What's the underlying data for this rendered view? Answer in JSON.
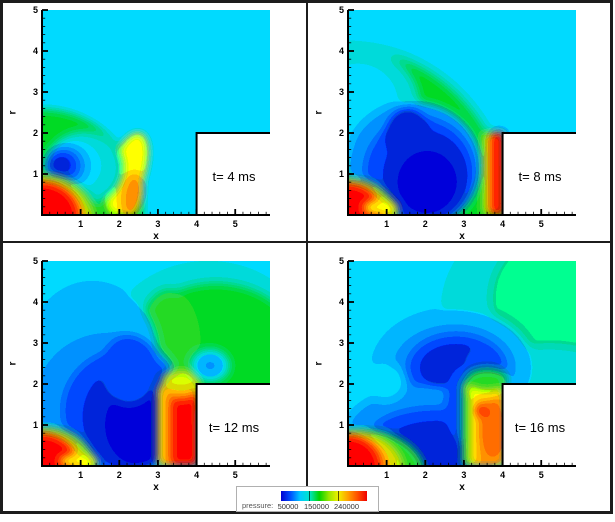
{
  "figure": {
    "background": "#ffffff",
    "frame_color": "#1c1c1c",
    "field_background": "#00c8f5"
  },
  "legend": {
    "label": "pressure:",
    "values": [
      "50000",
      "150000",
      "240000"
    ],
    "colorbar_colors": [
      "#0000d2",
      "#0050ff",
      "#00c8ff",
      "#00e6c8",
      "#00d200",
      "#96e600",
      "#f0f000",
      "#ffa000",
      "#ff5000",
      "#f00000"
    ]
  },
  "chart_data": {
    "type": "heatmap",
    "subtype": "filled-contour",
    "variable": "pressure",
    "xlabel": "x",
    "ylabel": "r",
    "x_range": [
      0,
      5.9
    ],
    "y_range": [
      0,
      5
    ],
    "x_ticks": [
      1,
      2,
      3,
      4,
      5
    ],
    "y_ticks": [
      1,
      2,
      3,
      4,
      5
    ],
    "minor_tick_step": 0.2,
    "colorbar_ticks": [
      50000,
      150000,
      240000
    ],
    "step_obstacle": {
      "x_from": 4,
      "r_upto": 2
    },
    "panels": [
      {
        "position": "top-left",
        "time_ms": 4,
        "time_label": "t= 4 ms",
        "features": [
          {
            "t": "r",
            "c": "#00c8f5",
            "x": -0.4,
            "y": -0.4,
            "w": 6.8,
            "h": 5.9
          },
          {
            "t": "e",
            "c": "#16d434",
            "x": 0,
            "y": 0,
            "rx": 2.62,
            "ry": 2.58
          },
          {
            "t": "e",
            "c": "#f4f000",
            "x": 2.2,
            "y": 1.0,
            "rx": 0.45,
            "ry": 1.05,
            "rot": -18
          },
          {
            "t": "e",
            "c": "#ff9600",
            "x": 2.32,
            "y": 0.5,
            "rx": 0.28,
            "ry": 0.55,
            "rot": -10
          },
          {
            "t": "e",
            "c": "#00dcc8",
            "x": 1.1,
            "y": 1.15,
            "rx": 1.0,
            "ry": 0.9
          },
          {
            "t": "e",
            "c": "#00c8f5",
            "x": 0.8,
            "y": 1.2,
            "rx": 0.75,
            "ry": 0.63
          },
          {
            "t": "e",
            "c": "#0096ff",
            "x": 0.62,
            "y": 1.2,
            "rx": 0.56,
            "ry": 0.5
          },
          {
            "t": "e",
            "c": "#0050f0",
            "x": 0.55,
            "y": 1.2,
            "rx": 0.42,
            "ry": 0.38
          },
          {
            "t": "e",
            "c": "#0a28d2",
            "x": 0.5,
            "y": 1.22,
            "rx": 0.26,
            "ry": 0.23
          },
          {
            "t": "e",
            "c": "#8ce41e",
            "x": 0.0,
            "y": -0.15,
            "rx": 1.42,
            "ry": 1.15
          },
          {
            "t": "e",
            "c": "#ffa000",
            "x": 0.0,
            "y": -0.1,
            "rx": 1.15,
            "ry": 0.95
          },
          {
            "t": "e",
            "c": "#f51400",
            "x": 0.0,
            "y": -0.05,
            "rx": 0.95,
            "ry": 0.85
          }
        ]
      },
      {
        "position": "top-right",
        "time_ms": 8,
        "time_label": "t= 8 ms",
        "features": [
          {
            "t": "r",
            "c": "#00c8f5",
            "x": -0.4,
            "y": -0.4,
            "w": 6.8,
            "h": 5.9
          },
          {
            "t": "e",
            "c": "#00dcc8",
            "x": 0,
            "y": 0,
            "rx": 4.3,
            "ry": 4.25
          },
          {
            "t": "e",
            "c": "#16d434",
            "x": 0,
            "y": 0,
            "rx": 4.08,
            "ry": 4.02
          },
          {
            "t": "e",
            "c": "#00dcc8",
            "x": 0.35,
            "y": 2.7,
            "rx": 1.5,
            "ry": 1.35
          },
          {
            "t": "e",
            "c": "#00c8f5",
            "x": 0.25,
            "y": 2.75,
            "rx": 1.05,
            "ry": 0.95
          },
          {
            "t": "e",
            "c": "#0096ff",
            "x": 1.7,
            "y": 1.2,
            "rx": 1.75,
            "ry": 1.55
          },
          {
            "t": "e",
            "c": "#0055ee",
            "x": 1.85,
            "y": 1.05,
            "rx": 1.45,
            "ry": 1.35
          },
          {
            "t": "e",
            "c": "#0a28d2",
            "x": 2.0,
            "y": 0.95,
            "rx": 1.1,
            "ry": 1.1
          },
          {
            "t": "e",
            "c": "#0a28d2",
            "x": 1.55,
            "y": 1.9,
            "rx": 0.6,
            "ry": 0.7
          },
          {
            "t": "e",
            "c": "#0a14c8",
            "x": 2.05,
            "y": 0.8,
            "rx": 0.75,
            "ry": 0.75
          },
          {
            "t": "r",
            "c": "#c8e414",
            "x": 3.5,
            "y": 0,
            "w": 0.3,
            "h": 2.0
          },
          {
            "t": "r",
            "c": "#ff9600",
            "x": 3.62,
            "y": 0,
            "w": 0.25,
            "h": 2.0
          },
          {
            "t": "r",
            "c": "#f51400",
            "x": 3.72,
            "y": 0,
            "w": 0.32,
            "h": 2.02
          },
          {
            "t": "e",
            "c": "#8ce41e",
            "x": 0.0,
            "y": -0.15,
            "rx": 1.3,
            "ry": 1.05
          },
          {
            "t": "e",
            "c": "#ffa000",
            "x": 0.0,
            "y": -0.1,
            "rx": 1.05,
            "ry": 0.9
          },
          {
            "t": "e",
            "c": "#f51400",
            "x": 0.0,
            "y": -0.05,
            "rx": 0.88,
            "ry": 0.82
          },
          {
            "t": "e",
            "c": "#f4f000",
            "x": 0.85,
            "y": 0.18,
            "rx": 0.45,
            "ry": 0.18
          }
        ]
      },
      {
        "position": "bottom-left",
        "time_ms": 12,
        "time_label": "t= 12 ms",
        "features": [
          {
            "t": "r",
            "c": "#00c8f5",
            "x": -0.4,
            "y": -0.4,
            "w": 6.8,
            "h": 5.9
          },
          {
            "t": "e",
            "c": "#00dcc8",
            "x": 4.3,
            "y": 3.0,
            "rx": 2.6,
            "ry": 2.0
          },
          {
            "t": "e",
            "c": "#16d434",
            "x": 4.5,
            "y": 2.9,
            "rx": 2.1,
            "ry": 1.55
          },
          {
            "t": "e",
            "c": "#2ad03c",
            "x": 3.3,
            "y": 3.0,
            "rx": 0.8,
            "ry": 1.3
          },
          {
            "t": "e",
            "c": "#16d434",
            "x": 5.2,
            "y": 2.4,
            "rx": 1.1,
            "ry": 0.5
          },
          {
            "t": "e",
            "c": "#00b4f0",
            "x": 1.3,
            "y": 2.7,
            "rx": 1.7,
            "ry": 1.8
          },
          {
            "t": "e",
            "c": "#0096ff",
            "x": 1.7,
            "y": 1.5,
            "rx": 1.95,
            "ry": 1.8
          },
          {
            "t": "e",
            "c": "#0055ee",
            "x": 2.1,
            "y": 1.35,
            "rx": 1.6,
            "ry": 1.5
          },
          {
            "t": "e",
            "c": "#0a28d2",
            "x": 2.35,
            "y": 1.2,
            "rx": 1.3,
            "ry": 1.3
          },
          {
            "t": "e",
            "c": "#0a14c8",
            "x": 2.6,
            "y": 1.0,
            "rx": 0.95,
            "ry": 1.0
          },
          {
            "t": "e",
            "c": "#0050e6",
            "x": 2.25,
            "y": 2.35,
            "rx": 0.75,
            "ry": 0.85
          },
          {
            "t": "r",
            "c": "#f4f000",
            "x": 3.0,
            "y": 0,
            "w": 0.3,
            "h": 1.95
          },
          {
            "t": "r",
            "c": "#ff8c00",
            "x": 3.15,
            "y": 0,
            "w": 0.45,
            "h": 1.9
          },
          {
            "t": "r",
            "c": "#f51400",
            "x": 3.35,
            "y": 0,
            "w": 0.69,
            "h": 1.85
          },
          {
            "t": "e",
            "c": "#ff9600",
            "x": 3.6,
            "y": 1.9,
            "rx": 0.45,
            "ry": 0.28
          },
          {
            "t": "e",
            "c": "#c8e414",
            "x": 3.6,
            "y": 2.08,
            "rx": 0.5,
            "ry": 0.26
          },
          {
            "t": "e",
            "c": "#00c8f5",
            "x": 4.35,
            "y": 2.45,
            "rx": 0.5,
            "ry": 0.4
          },
          {
            "t": "e",
            "c": "#0096ff",
            "x": 4.35,
            "y": 2.45,
            "rx": 0.26,
            "ry": 0.2
          },
          {
            "t": "e",
            "c": "#8ce41e",
            "x": 0.05,
            "y": -0.15,
            "rx": 1.35,
            "ry": 1.1
          },
          {
            "t": "e",
            "c": "#ff9600",
            "x": 0.0,
            "y": -0.1,
            "rx": 1.1,
            "ry": 0.92
          },
          {
            "t": "e",
            "c": "#f51400",
            "x": 0.0,
            "y": -0.05,
            "rx": 0.9,
            "ry": 0.84
          },
          {
            "t": "e",
            "c": "#f4f000",
            "x": 0.95,
            "y": 0.12,
            "rx": 0.5,
            "ry": 0.16
          }
        ]
      },
      {
        "position": "bottom-right",
        "time_ms": 16,
        "time_label": "t= 16 ms",
        "features": [
          {
            "t": "r",
            "c": "#00c8f5",
            "x": -0.4,
            "y": -0.4,
            "w": 6.8,
            "h": 5.9
          },
          {
            "t": "e",
            "c": "#00dcc8",
            "x": 5.1,
            "y": 3.8,
            "rx": 2.7,
            "ry": 2.4
          },
          {
            "t": "e",
            "c": "#00e08c",
            "x": 5.5,
            "y": 4.1,
            "rx": 1.8,
            "ry": 1.6
          },
          {
            "t": "e",
            "c": "#00dcc8",
            "x": 5.2,
            "y": 2.4,
            "rx": 1.5,
            "ry": 0.55
          },
          {
            "t": "e",
            "c": "#00b4f0",
            "x": 2.7,
            "y": 2.4,
            "rx": 2.1,
            "ry": 1.45
          },
          {
            "t": "e",
            "c": "#0096ff",
            "x": 2.75,
            "y": 2.4,
            "rx": 1.65,
            "ry": 1.1
          },
          {
            "t": "e",
            "c": "#0055ee",
            "x": 2.8,
            "y": 2.4,
            "rx": 1.3,
            "ry": 0.85
          },
          {
            "t": "e",
            "c": "#0a28d2",
            "x": 2.8,
            "y": 2.4,
            "rx": 0.95,
            "ry": 0.58
          },
          {
            "t": "e",
            "c": "#0050e6",
            "x": 3.5,
            "y": 2.6,
            "rx": 0.5,
            "ry": 0.3
          },
          {
            "t": "e",
            "c": "#0096ff",
            "x": 2.1,
            "y": 0.75,
            "rx": 2.2,
            "ry": 1.2
          },
          {
            "t": "e",
            "c": "#0055ee",
            "x": 2.2,
            "y": 0.6,
            "rx": 1.75,
            "ry": 0.85
          },
          {
            "t": "e",
            "c": "#0a28d2",
            "x": 2.3,
            "y": 0.5,
            "rx": 1.35,
            "ry": 0.6
          },
          {
            "t": "e",
            "c": "#0055ee",
            "x": 3.0,
            "y": 1.5,
            "rx": 0.5,
            "ry": 0.95
          },
          {
            "t": "e",
            "c": "#00c8f5",
            "x": 0.95,
            "y": 2.05,
            "rx": 0.55,
            "ry": 0.48
          },
          {
            "t": "r",
            "c": "#2ad03c",
            "x": 2.95,
            "y": 0,
            "w": 0.35,
            "h": 2.05
          },
          {
            "t": "r",
            "c": "#f4f000",
            "x": 3.12,
            "y": 0,
            "w": 0.45,
            "h": 1.95
          },
          {
            "t": "r",
            "c": "#ff9600",
            "x": 3.32,
            "y": 0,
            "w": 0.72,
            "h": 1.8
          },
          {
            "t": "e",
            "c": "#ff6400",
            "x": 3.75,
            "y": 0.9,
            "rx": 0.3,
            "ry": 0.7
          },
          {
            "t": "e",
            "c": "#f51400",
            "x": 3.42,
            "y": 1.35,
            "rx": 0.14,
            "ry": 0.13
          },
          {
            "t": "e",
            "c": "#f4f000",
            "x": 3.55,
            "y": 1.9,
            "rx": 0.5,
            "ry": 0.25
          },
          {
            "t": "e",
            "c": "#2ad03c",
            "x": 3.6,
            "y": 2.12,
            "rx": 0.55,
            "ry": 0.26
          },
          {
            "t": "e",
            "c": "#2ad03c",
            "x": 0.3,
            "y": -0.2,
            "rx": 1.7,
            "ry": 1.1
          },
          {
            "t": "e",
            "c": "#c8e414",
            "x": 0.15,
            "y": -0.1,
            "rx": 1.3,
            "ry": 0.95
          },
          {
            "t": "e",
            "c": "#ff9600",
            "x": 0.05,
            "y": -0.1,
            "rx": 1.05,
            "ry": 0.88
          },
          {
            "t": "e",
            "c": "#f51400",
            "x": 0.0,
            "y": -0.05,
            "rx": 0.85,
            "ry": 0.8
          }
        ]
      }
    ]
  }
}
